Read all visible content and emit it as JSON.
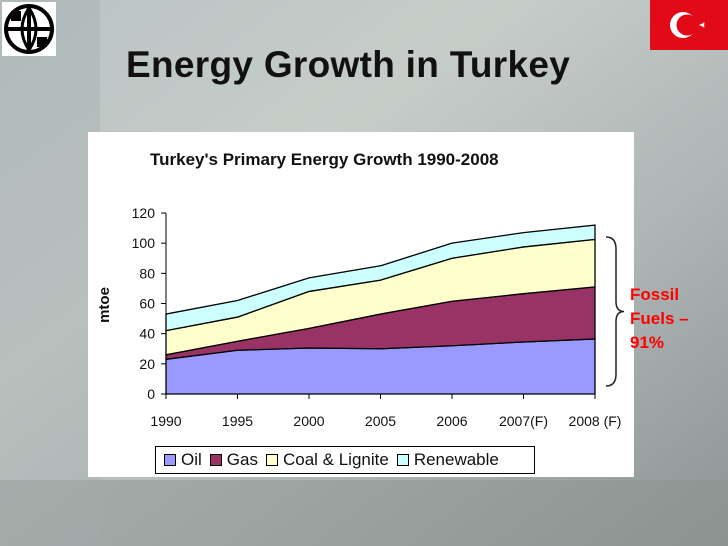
{
  "slide": {
    "title": "Energy Growth in Turkey",
    "note": "Fossil Fuels – 91%"
  },
  "colors": {
    "oil": "#9999ff",
    "gas": "#993366",
    "coal": "#ffffcc",
    "renewable": "#ccffff",
    "note": "#ff0000",
    "flag": "#e30a17"
  },
  "icons": {
    "logo": "world-bank-logo-icon",
    "flag": "turkey-flag-icon"
  },
  "chart_data": {
    "type": "area",
    "stacked": true,
    "title": "Turkey's Primary Energy Growth 1990-2008",
    "xlabel": "",
    "ylabel": "mtoe",
    "categories": [
      "1990",
      "1995",
      "2000",
      "2005",
      "2006",
      "2007(F)",
      "2008 (F)"
    ],
    "ylim": [
      0,
      120
    ],
    "yticks": [
      0,
      20,
      40,
      60,
      80,
      100,
      120
    ],
    "grid": false,
    "legend_position": "bottom",
    "series": [
      {
        "name": "Oil",
        "values": [
          23,
          29,
          30.5,
          30,
          32,
          34.5,
          36.5
        ]
      },
      {
        "name": "Gas",
        "values": [
          3,
          6,
          13,
          23,
          29.5,
          32,
          34.5
        ]
      },
      {
        "name": "Coal & Lignite",
        "values": [
          16,
          16,
          24.5,
          22.5,
          28.5,
          31,
          31.5
        ]
      },
      {
        "name": "Renewable",
        "values": [
          11,
          11,
          9,
          9.5,
          10,
          9.5,
          9.5
        ]
      }
    ]
  }
}
